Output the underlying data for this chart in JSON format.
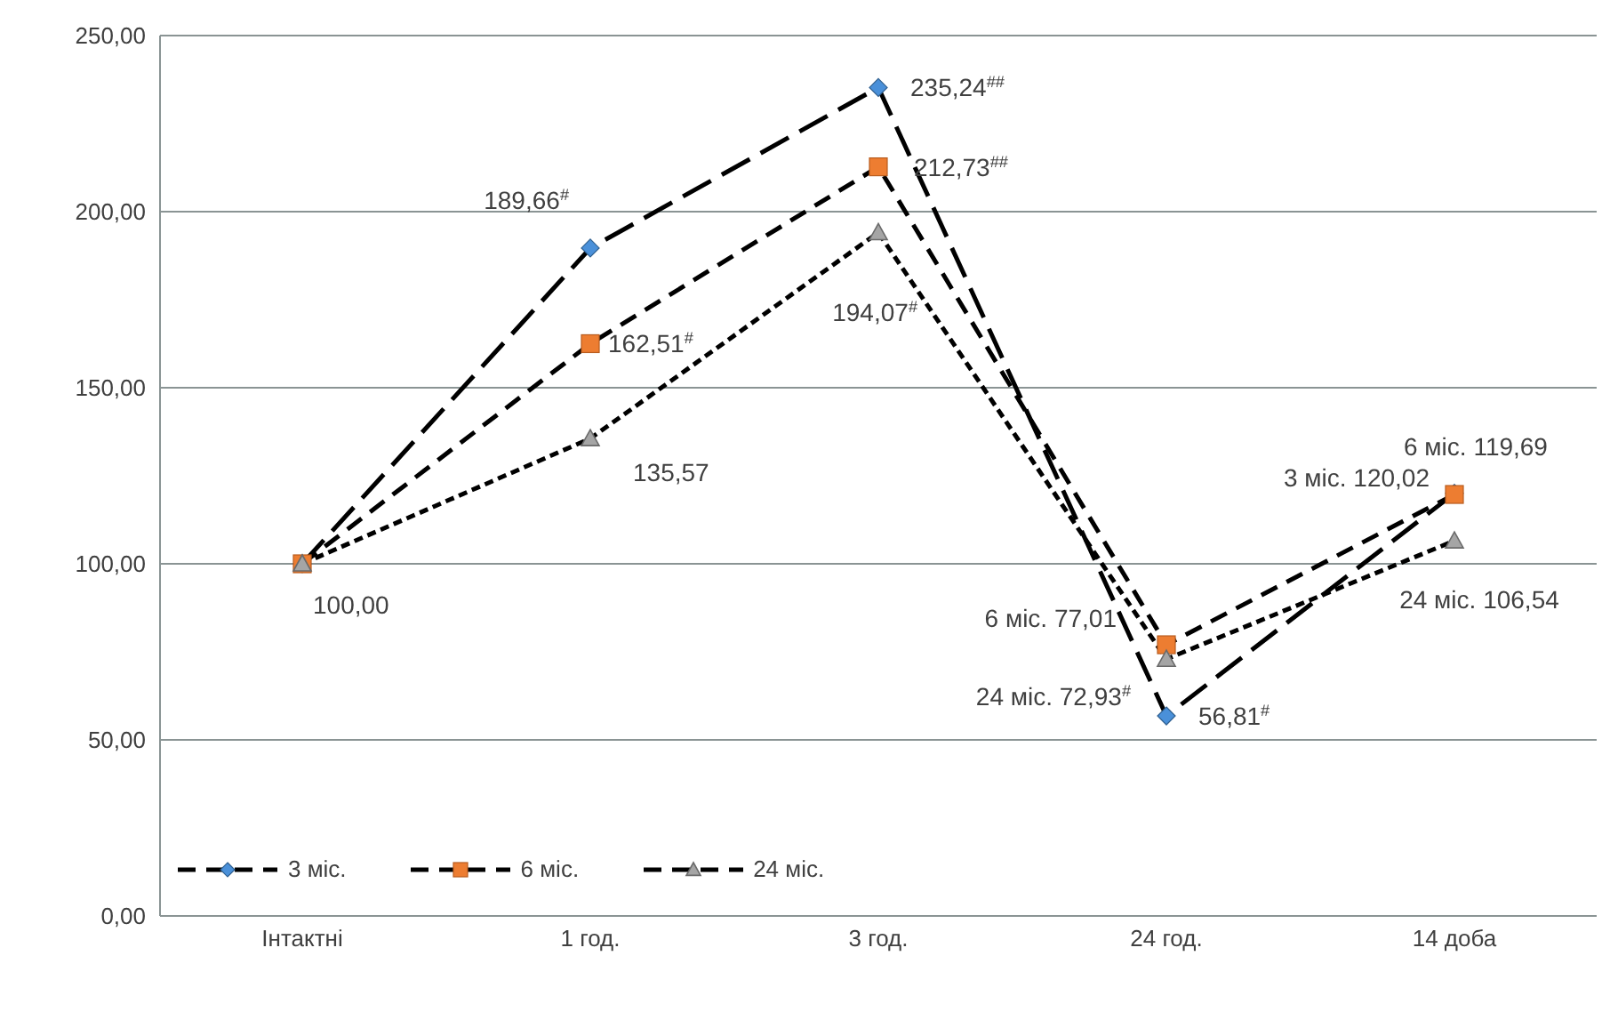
{
  "chart_data": {
    "type": "line",
    "categories": [
      "Інтактні",
      "1 год.",
      "3 год.",
      "24 год.",
      "14 доба"
    ],
    "series": [
      {
        "name": "3 міс.",
        "color": "#4a90d9",
        "marker": "diamond",
        "line_style": "dashed",
        "values": [
          100,
          189.66,
          235.24,
          56.81,
          120.02
        ],
        "value_labels": [
          null,
          "189,66$^{#}$",
          "235,24$^{##}$",
          "56,81$^{#}$",
          "3 міс. 120,02"
        ]
      },
      {
        "name": "6 міс.",
        "color": "#ed7d31",
        "marker": "square",
        "line_style": "dashed",
        "values": [
          100,
          162.51,
          212.73,
          77.01,
          119.69
        ],
        "value_labels": [
          null,
          "162,51$^{#}$",
          "212,73$^{##}$",
          "6 міс. 77,01",
          "6 міс. 119,69"
        ]
      },
      {
        "name": "24 міс.",
        "color": "#a5a5a5",
        "marker": "triangle",
        "line_style": "dotted",
        "values": [
          100,
          135.57,
          194.07,
          72.93,
          106.54
        ],
        "value_labels": [
          "100,00",
          "135,57",
          "194,07$^{#}$",
          "24 міс. 72,93$^{#}$",
          "24 міс. 106,54"
        ]
      }
    ],
    "ylim": [
      0,
      250
    ],
    "yticks": [
      {
        "value": 0,
        "label": "0,00"
      },
      {
        "value": 50,
        "label": "50,00"
      },
      {
        "value": 100,
        "label": "100,00"
      },
      {
        "value": 150,
        "label": "150,00"
      },
      {
        "value": 200,
        "label": "200,00"
      },
      {
        "value": 250,
        "label": "250,00"
      }
    ],
    "grid": "y",
    "legend": "bottom"
  }
}
